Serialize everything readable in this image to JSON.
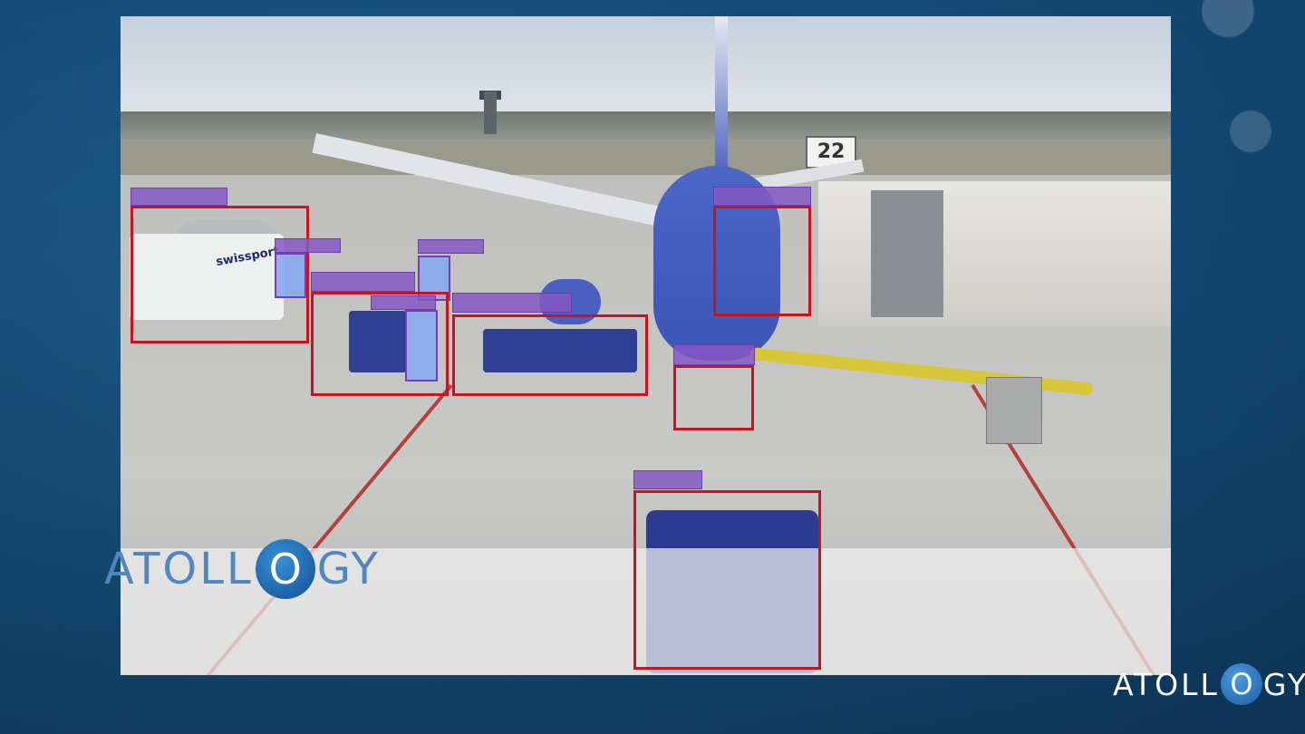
{
  "brand": {
    "main_logo": {
      "left": "ATOLL",
      "o": "O",
      "right": "GY"
    },
    "corner_logo": {
      "left": "ATOLL",
      "o": "O",
      "right": "GY"
    },
    "accent_color": "#1d62a8"
  },
  "scene": {
    "gate_number": "22",
    "truck_text": "swissport"
  },
  "detections": {
    "box_color": "#c8141e",
    "label_color": "#8658c4",
    "highlight_color": "#8aaaec",
    "count": 9
  }
}
